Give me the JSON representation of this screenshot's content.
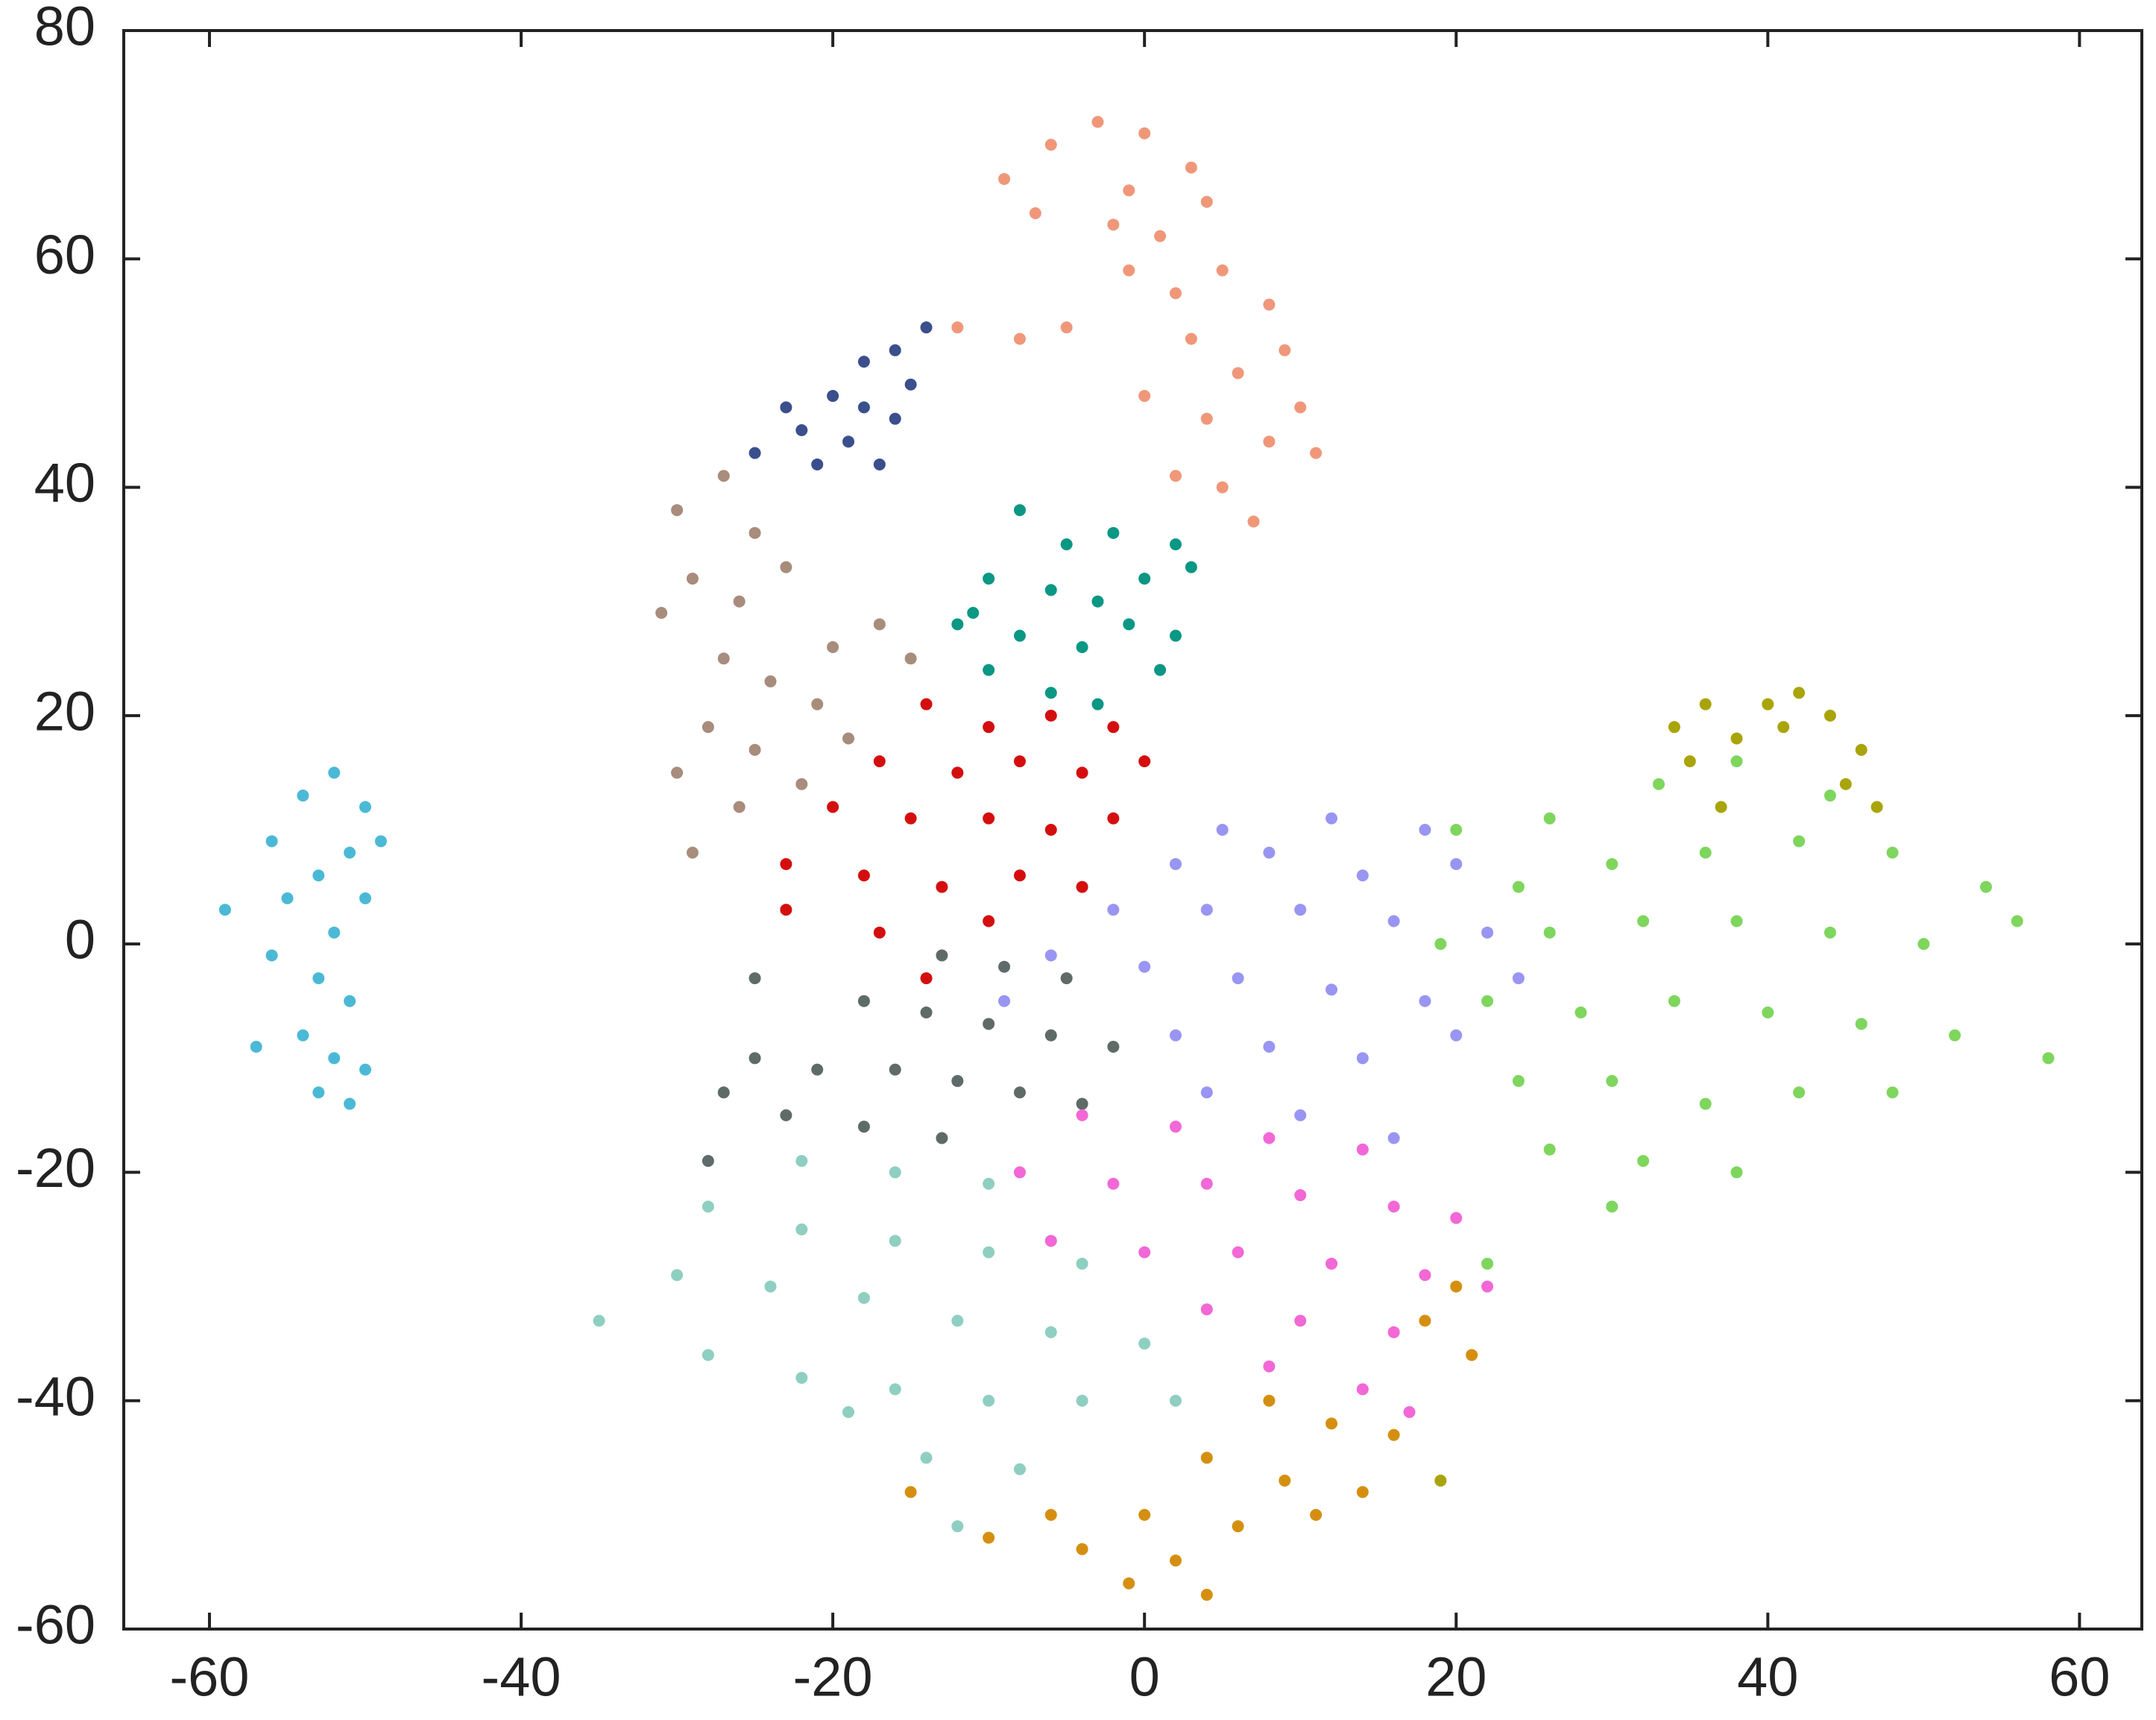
{
  "chart_data": {
    "type": "scatter",
    "xlim": [
      -65.5,
      64
    ],
    "ylim": [
      -60,
      80
    ],
    "xticks": [
      -60,
      -40,
      -20,
      0,
      20,
      40,
      60
    ],
    "yticks": [
      -60,
      -40,
      -20,
      0,
      20,
      40,
      60,
      80
    ],
    "series": [
      {
        "color": "#4bb9d6",
        "x": [
          -52,
          -54,
          -50,
          -56,
          -51,
          -53,
          -55,
          -50,
          -52,
          -56,
          -53,
          -51,
          -54,
          -57,
          -52,
          -50,
          -53,
          -51,
          -59,
          -49
        ],
        "y": [
          15,
          13,
          12,
          9,
          8,
          6,
          4,
          4,
          1,
          -1,
          -3,
          -5,
          -8,
          -9,
          -10,
          -11,
          -13,
          -14,
          3,
          9
        ]
      },
      {
        "color": "#f0977a",
        "x": [
          -3,
          0,
          -6,
          3,
          -9,
          -1,
          4,
          -2,
          1,
          -7,
          -1,
          -12,
          -8,
          -5,
          2,
          5,
          8,
          3,
          6,
          9,
          0,
          4,
          8,
          11,
          2,
          5,
          7,
          10
        ],
        "y": [
          72,
          71,
          70,
          68,
          67,
          66,
          65,
          63,
          62,
          64,
          59,
          54,
          53,
          54,
          57,
          59,
          56,
          53,
          50,
          52,
          48,
          46,
          44,
          43,
          41,
          40,
          37,
          47
        ]
      },
      {
        "color": "#3a4f8c",
        "x": [
          -25,
          -22,
          -20,
          -18,
          -16,
          -14,
          -19,
          -17,
          -21,
          -16,
          -18,
          -15,
          -23
        ],
        "y": [
          43,
          45,
          48,
          51,
          52,
          54,
          44,
          42,
          42,
          46,
          47,
          49,
          47
        ]
      },
      {
        "color": "#a88c7c",
        "x": [
          -27,
          -30,
          -25,
          -29,
          -26,
          -23,
          -31,
          -27,
          -24,
          -20,
          -17,
          -21,
          -28,
          -25,
          -30,
          -26,
          -29,
          -22,
          -19,
          -15
        ],
        "y": [
          41,
          38,
          36,
          32,
          30,
          33,
          29,
          25,
          23,
          26,
          28,
          21,
          19,
          17,
          15,
          12,
          8,
          14,
          18,
          25
        ]
      },
      {
        "color": "#0a9784",
        "x": [
          -8,
          -5,
          -2,
          2,
          -10,
          -6,
          -3,
          0,
          3,
          -12,
          -8,
          -4,
          -1,
          2,
          -10,
          -6,
          -3,
          1,
          -11
        ],
        "y": [
          38,
          35,
          36,
          35,
          32,
          31,
          30,
          32,
          33,
          28,
          27,
          26,
          28,
          27,
          24,
          22,
          21,
          24,
          29
        ]
      },
      {
        "color": "#d40e0e",
        "x": [
          -14,
          -10,
          -6,
          -2,
          -17,
          -12,
          -8,
          -4,
          0,
          -20,
          -15,
          -10,
          -6,
          -2,
          -23,
          -18,
          -13,
          -8,
          -4,
          -23,
          -17,
          -10,
          -14
        ],
        "y": [
          21,
          19,
          20,
          19,
          16,
          15,
          16,
          15,
          16,
          12,
          11,
          11,
          10,
          11,
          7,
          6,
          5,
          6,
          5,
          3,
          1,
          2,
          -3
        ]
      },
      {
        "color": "#9995f2",
        "x": [
          5,
          12,
          18,
          2,
          8,
          14,
          20,
          -2,
          4,
          10,
          16,
          22,
          -6,
          0,
          6,
          12,
          18,
          24,
          -9,
          2,
          8,
          14,
          20,
          4,
          10,
          16
        ],
        "y": [
          10,
          11,
          10,
          7,
          8,
          6,
          7,
          3,
          3,
          3,
          2,
          1,
          -1,
          -2,
          -3,
          -4,
          -5,
          -3,
          -5,
          -8,
          -9,
          -10,
          -8,
          -13,
          -15,
          -17
        ]
      },
      {
        "color": "#7ed65d",
        "x": [
          20,
          26,
          33,
          38,
          44,
          24,
          30,
          36,
          42,
          48,
          54,
          19,
          26,
          32,
          38,
          44,
          50,
          56,
          22,
          28,
          34,
          40,
          46,
          52,
          24,
          30,
          36,
          42,
          48,
          26,
          32,
          38,
          30,
          58,
          22
        ],
        "y": [
          10,
          11,
          14,
          16,
          13,
          5,
          7,
          8,
          9,
          8,
          5,
          0,
          1,
          2,
          2,
          1,
          0,
          2,
          -5,
          -6,
          -5,
          -6,
          -7,
          -8,
          -12,
          -12,
          -14,
          -13,
          -13,
          -18,
          -19,
          -20,
          -23,
          -10,
          -28
        ]
      },
      {
        "color": "#a9a40a",
        "x": [
          34,
          36,
          40,
          42,
          44,
          46,
          35,
          38,
          41,
          45,
          47,
          37,
          19
        ],
        "y": [
          19,
          21,
          21,
          22,
          20,
          17,
          16,
          18,
          19,
          14,
          12,
          12,
          -47
        ]
      },
      {
        "color": "#5e6b68",
        "x": [
          -13,
          -9,
          -5,
          -18,
          -14,
          -10,
          -6,
          -2,
          -25,
          -21,
          -16,
          -12,
          -8,
          -4,
          -27,
          -23,
          -18,
          -13,
          -28,
          -25
        ],
        "y": [
          -1,
          -2,
          -3,
          -5,
          -6,
          -7,
          -8,
          -9,
          -10,
          -11,
          -11,
          -12,
          -13,
          -14,
          -13,
          -15,
          -16,
          -17,
          -19,
          -3
        ]
      },
      {
        "color": "#f268d6",
        "x": [
          -4,
          2,
          8,
          14,
          -8,
          -2,
          4,
          10,
          16,
          20,
          -6,
          0,
          6,
          12,
          18,
          22,
          4,
          10,
          16,
          8,
          14,
          17
        ],
        "y": [
          -15,
          -16,
          -17,
          -18,
          -20,
          -21,
          -21,
          -22,
          -23,
          -24,
          -26,
          -27,
          -27,
          -28,
          -29,
          -30,
          -32,
          -33,
          -34,
          -37,
          -39,
          -41
        ]
      },
      {
        "color": "#8ecfc2",
        "x": [
          -22,
          -16,
          -10,
          -28,
          -22,
          -16,
          -10,
          -4,
          -30,
          -24,
          -18,
          -12,
          -6,
          0,
          -35,
          -28,
          -22,
          -16,
          -10,
          -4,
          2,
          -14,
          -8,
          -12,
          -19
        ],
        "y": [
          -19,
          -20,
          -21,
          -23,
          -25,
          -26,
          -27,
          -28,
          -29,
          -30,
          -31,
          -33,
          -34,
          -35,
          -33,
          -36,
          -38,
          -39,
          -40,
          -40,
          -40,
          -45,
          -46,
          -51,
          -41
        ]
      },
      {
        "color": "#d58f10",
        "x": [
          8,
          12,
          16,
          4,
          9,
          14,
          -6,
          0,
          6,
          11,
          -10,
          -4,
          2,
          -1,
          4,
          18,
          20,
          21,
          -15
        ],
        "y": [
          -40,
          -42,
          -43,
          -45,
          -47,
          -48,
          -50,
          -50,
          -51,
          -50,
          -52,
          -53,
          -54,
          -56,
          -57,
          -33,
          -30,
          -36,
          -48
        ]
      }
    ]
  }
}
